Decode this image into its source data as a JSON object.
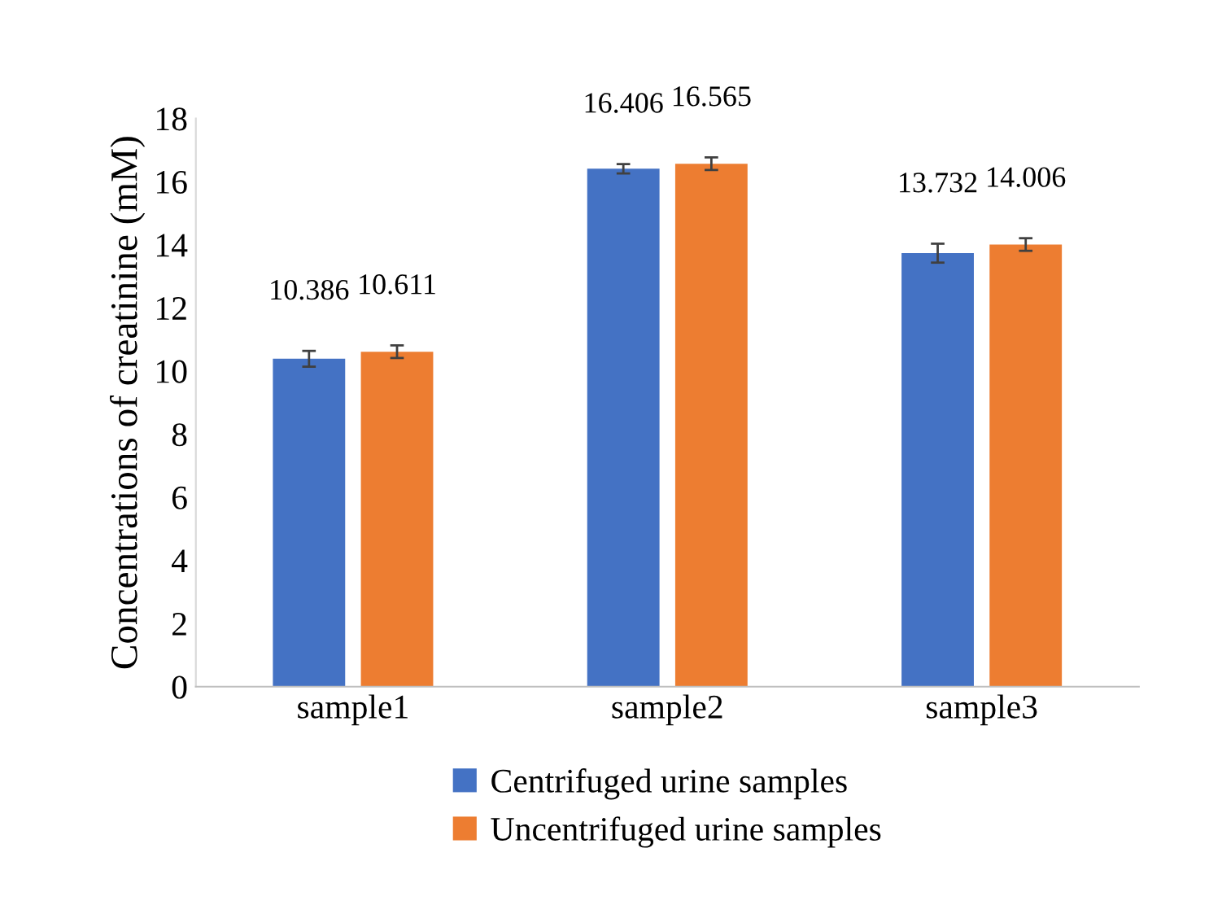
{
  "chart_data": {
    "type": "bar",
    "ylabel": "Concentrations of creatinine (mM)",
    "categories": [
      "sample1",
      "sample2",
      "sample3"
    ],
    "series": [
      {
        "name": "Centrifuged urine samples",
        "color": "#4472c4",
        "values": [
          10.386,
          16.406,
          13.732
        ],
        "errors": [
          0.25,
          0.15,
          0.3
        ],
        "value_labels": [
          "10.386",
          "16.406",
          "13.732"
        ]
      },
      {
        "name": "Uncentrifuged urine samples",
        "color": "#ed7d31",
        "values": [
          10.611,
          16.565,
          14.006
        ],
        "errors": [
          0.2,
          0.2,
          0.2
        ],
        "value_labels": [
          "10.611",
          "16.565",
          "14.006"
        ]
      }
    ],
    "ylim": [
      0,
      18
    ],
    "yticks": [
      0,
      2,
      4,
      6,
      8,
      10,
      12,
      14,
      16,
      18
    ],
    "grid": false,
    "legend": "bottom"
  }
}
